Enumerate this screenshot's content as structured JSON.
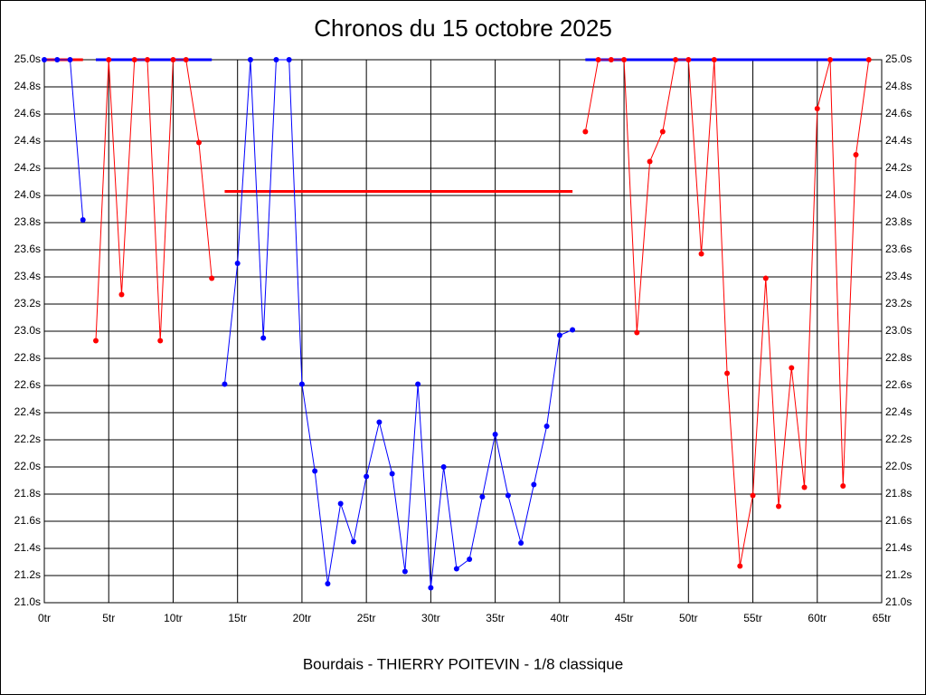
{
  "chart_data": {
    "type": "line",
    "title": "Chronos du 15 octobre 2025",
    "x_label": "Bourdais - THIERRY POITEVIN - 1/8 classique",
    "xlim": [
      0,
      65
    ],
    "xticks": [
      {
        "value": 0,
        "label": "0tr"
      },
      {
        "value": 5,
        "label": "5tr"
      },
      {
        "value": 10,
        "label": "10tr"
      },
      {
        "value": 15,
        "label": "15tr"
      },
      {
        "value": 20,
        "label": "20tr"
      },
      {
        "value": 25,
        "label": "25tr"
      },
      {
        "value": 30,
        "label": "30tr"
      },
      {
        "value": 35,
        "label": "35tr"
      },
      {
        "value": 40,
        "label": "40tr"
      },
      {
        "value": 45,
        "label": "45tr"
      },
      {
        "value": 50,
        "label": "50tr"
      },
      {
        "value": 55,
        "label": "55tr"
      },
      {
        "value": 60,
        "label": "60tr"
      },
      {
        "value": 65,
        "label": "65tr"
      }
    ],
    "ylim": [
      21.0,
      25.0
    ],
    "yticks": [
      {
        "value": 21.0,
        "label": "21.0s"
      },
      {
        "value": 21.2,
        "label": "21.2s"
      },
      {
        "value": 21.4,
        "label": "21.4s"
      },
      {
        "value": 21.6,
        "label": "21.6s"
      },
      {
        "value": 21.8,
        "label": "21.8s"
      },
      {
        "value": 22.0,
        "label": "22.0s"
      },
      {
        "value": 22.2,
        "label": "22.2s"
      },
      {
        "value": 22.4,
        "label": "22.4s"
      },
      {
        "value": 22.6,
        "label": "22.6s"
      },
      {
        "value": 22.8,
        "label": "22.8s"
      },
      {
        "value": 23.0,
        "label": "23.0s"
      },
      {
        "value": 23.2,
        "label": "23.2s"
      },
      {
        "value": 23.4,
        "label": "23.4s"
      },
      {
        "value": 23.6,
        "label": "23.6s"
      },
      {
        "value": 23.8,
        "label": "23.8s"
      },
      {
        "value": 24.0,
        "label": "24.0s"
      },
      {
        "value": 24.2,
        "label": "24.2s"
      },
      {
        "value": 24.4,
        "label": "24.4s"
      },
      {
        "value": 24.6,
        "label": "24.6s"
      },
      {
        "value": 24.8,
        "label": "24.8s"
      },
      {
        "value": 25.0,
        "label": "25.0s"
      }
    ],
    "grid": true,
    "series": [
      {
        "color": "#0000ff",
        "x": [
          0,
          1,
          2,
          3
        ],
        "values": [
          25.0,
          25.0,
          25.0,
          23.82
        ]
      },
      {
        "color": "#ff0000",
        "x": [
          4,
          5,
          6,
          7,
          8,
          9,
          10,
          11,
          12,
          13
        ],
        "values": [
          22.93,
          25.0,
          23.27,
          25.0,
          25.0,
          22.93,
          25.0,
          25.0,
          24.39,
          23.39
        ]
      },
      {
        "color": "#0000ff",
        "x": [
          14,
          15,
          16,
          17,
          18,
          19,
          20,
          21,
          22,
          23,
          24,
          25,
          26,
          27,
          28,
          29,
          30,
          31,
          32,
          33,
          34,
          35,
          36,
          37,
          38,
          39,
          40,
          41
        ],
        "values": [
          22.61,
          23.5,
          25.0,
          22.95,
          25.0,
          25.0,
          22.61,
          21.97,
          21.14,
          21.73,
          21.45,
          21.93,
          22.33,
          21.95,
          21.23,
          22.61,
          21.11,
          22.0,
          21.25,
          21.32,
          21.78,
          22.24,
          21.79,
          21.44,
          21.87,
          22.3,
          22.97,
          23.01
        ]
      },
      {
        "color": "#ff0000",
        "x": [
          42,
          43,
          44,
          45,
          46,
          47,
          48,
          49,
          50,
          51,
          52,
          53,
          54,
          55,
          56,
          57,
          58,
          59,
          60,
          61,
          62,
          63,
          64
        ],
        "values": [
          24.47,
          25.0,
          25.0,
          25.0,
          22.99,
          24.25,
          24.47,
          25.0,
          25.0,
          23.57,
          25.0,
          22.69,
          21.27,
          21.79,
          23.39,
          21.71,
          22.73,
          21.85,
          24.64,
          25.0,
          21.86,
          24.3,
          25.0
        ]
      }
    ],
    "reference_lines": [
      {
        "color": "#ff0000",
        "x": [
          0,
          3
        ],
        "y": 25.0
      },
      {
        "color": "#0000ff",
        "x": [
          4,
          13
        ],
        "y": 25.0
      },
      {
        "color": "#ff0000",
        "x": [
          14,
          41
        ],
        "y": 24.03
      },
      {
        "color": "#0000ff",
        "x": [
          42,
          64
        ],
        "y": 25.0
      }
    ]
  }
}
